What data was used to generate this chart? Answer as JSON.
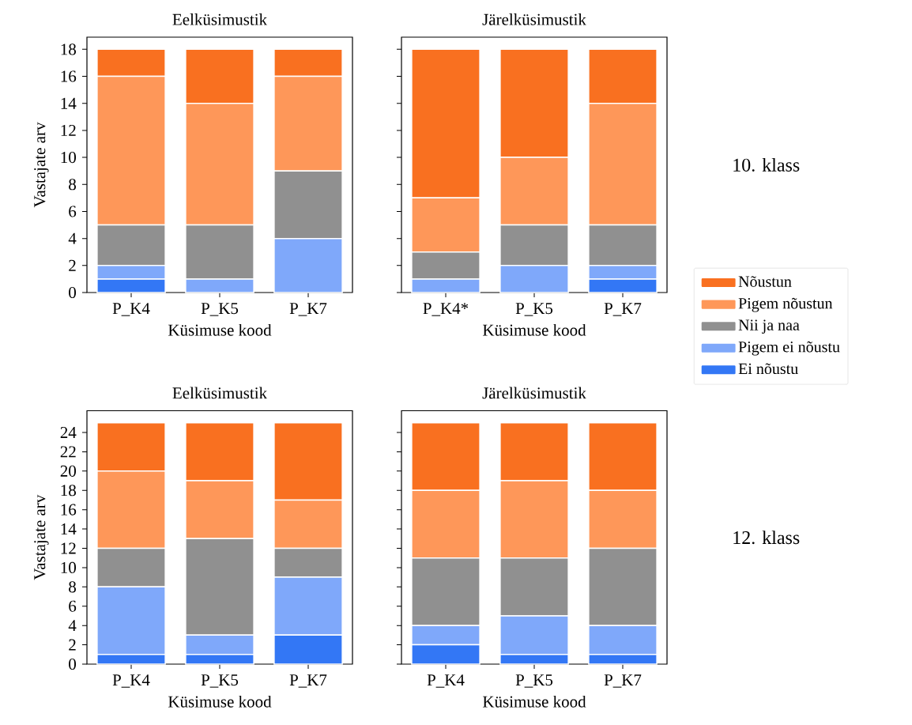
{
  "chart_data": [
    {
      "type": "bar",
      "title": "Eelküsimustik",
      "xlabel": "Küsimuse kood",
      "ylabel": "Vastajate arv",
      "categories": [
        "P_K4",
        "P_K5",
        "P_K7"
      ],
      "stacked": true,
      "ylim": [
        0,
        18.9
      ],
      "yticks": [
        0,
        2,
        4,
        6,
        8,
        10,
        12,
        14,
        16,
        18
      ],
      "series": [
        {
          "color": "#3377f5",
          "values": [
            1,
            0,
            0
          ]
        },
        {
          "color": "#7fa8fa",
          "values": [
            1,
            1,
            4
          ]
        },
        {
          "color": "#909090",
          "values": [
            3,
            4,
            5
          ]
        },
        {
          "color": "#fe9759",
          "values": [
            11,
            9,
            7
          ]
        },
        {
          "color": "#f97020",
          "values": [
            2,
            4,
            2
          ]
        }
      ]
    },
    {
      "type": "bar",
      "title": "Järelküsimustik",
      "xlabel": "Küsimuse kood",
      "categories": [
        "P_K4*",
        "P_K5",
        "P_K7"
      ],
      "stacked": true,
      "ylim": [
        0,
        18.9
      ],
      "yticks": [
        0,
        2,
        4,
        6,
        8,
        10,
        12,
        14,
        16,
        18
      ],
      "tick_labels": "x",
      "legend": "right",
      "annotations": [
        "10. klass"
      ],
      "series": [
        {
          "name": "Ei nõustu",
          "color": "#3377f5",
          "values": [
            0,
            0,
            1
          ]
        },
        {
          "name": "Pigem ei nõustu",
          "color": "#7fa8fa",
          "values": [
            1,
            2,
            1
          ]
        },
        {
          "name": "Nii ja naa",
          "color": "#909090",
          "values": [
            2,
            3,
            3
          ]
        },
        {
          "name": "Pigem nõustun",
          "color": "#fe9759",
          "values": [
            4,
            5,
            9
          ]
        },
        {
          "name": "Nõustun",
          "color": "#f97020",
          "values": [
            11,
            8,
            4
          ]
        }
      ]
    },
    {
      "type": "bar",
      "title": "Eelküsimustik",
      "xlabel": "Küsimuse kood",
      "ylabel": "Vastajate arv",
      "categories": [
        "P_K4",
        "P_K5",
        "P_K7"
      ],
      "stacked": true,
      "ylim": [
        0,
        26.25
      ],
      "yticks": [
        0,
        2,
        4,
        6,
        8,
        10,
        12,
        14,
        16,
        18,
        20,
        22,
        24
      ],
      "series": [
        {
          "color": "#3377f5",
          "values": [
            1,
            1,
            3
          ]
        },
        {
          "color": "#7fa8fa",
          "values": [
            7,
            2,
            6
          ]
        },
        {
          "color": "#909090",
          "values": [
            4,
            10,
            3
          ]
        },
        {
          "color": "#fe9759",
          "values": [
            8,
            6,
            5
          ]
        },
        {
          "color": "#f97020",
          "values": [
            5,
            6,
            8
          ]
        }
      ]
    },
    {
      "type": "bar",
      "title": "Järelküsimustik",
      "xlabel": "Küsimuse kood",
      "categories": [
        "P_K4",
        "P_K5",
        "P_K7"
      ],
      "stacked": true,
      "ylim": [
        0,
        26.25
      ],
      "yticks": [
        0,
        2,
        4,
        6,
        8,
        10,
        12,
        14,
        16,
        18,
        20,
        22,
        24
      ],
      "tick_labels": "x",
      "annotations": [
        "12. klass"
      ],
      "series": [
        {
          "color": "#3377f5",
          "values": [
            2,
            1,
            1
          ]
        },
        {
          "color": "#7fa8fa",
          "values": [
            2,
            4,
            3
          ]
        },
        {
          "color": "#909090",
          "values": [
            7,
            6,
            8
          ]
        },
        {
          "color": "#fe9759",
          "values": [
            7,
            8,
            6
          ]
        },
        {
          "color": "#f97020",
          "values": [
            7,
            6,
            7
          ]
        }
      ]
    }
  ]
}
